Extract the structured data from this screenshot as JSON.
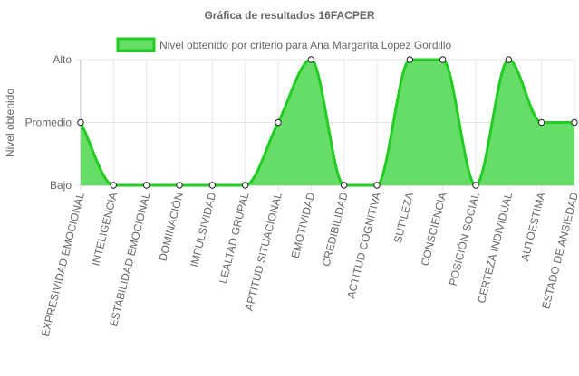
{
  "chart_data": {
    "type": "area",
    "title": "Gráfica de resultados 16FACPER",
    "xlabel": "",
    "ylabel": "Nivel obtenido",
    "y_levels": [
      "Bajo",
      "Promedio",
      "Alto"
    ],
    "categories": [
      "EXPRESIVIDAD EMOCIONAL",
      "INTELIGENCIA",
      "ESTABILIDAD EMOCIONAL",
      "DOMINACIÓN",
      "IMPULSIVIDAD",
      "LEALTAD GRUPAL",
      "APTITUD SITUACIONAL",
      "EMOTIVIDAD",
      "CREDIBILIDAD",
      "ACTITUD COGNITIVA",
      "SUTILEZA",
      "CONSCIENCIA",
      "POSICIÓN SOCIAL",
      "CERTEZA INDIVIDUAL",
      "AUTOESTIMA",
      "ESTADO DE ANSIEDAD"
    ],
    "series": [
      {
        "name": "Nivel obtenido por criterio para Ana Margarita López Gordillo",
        "values": [
          1,
          0,
          0,
          0,
          0,
          0,
          1,
          2,
          0,
          0,
          2,
          2,
          0,
          2,
          1,
          1
        ],
        "fill_color": "#66dd66",
        "line_color": "#22cc22"
      }
    ],
    "ylim": [
      0,
      2
    ],
    "grid": true,
    "legend_position": "top"
  }
}
